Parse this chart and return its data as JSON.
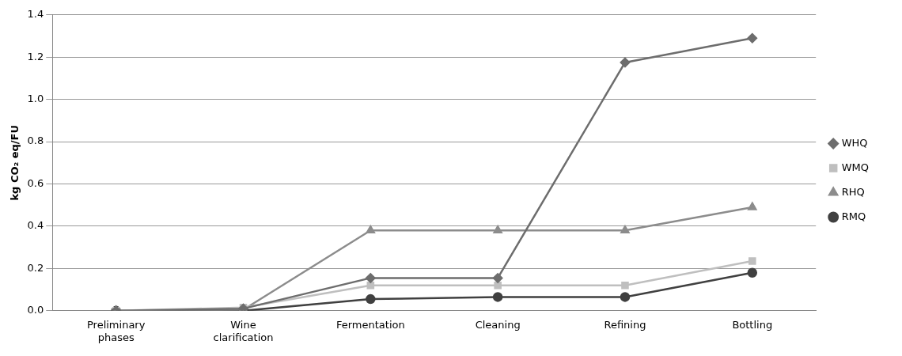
{
  "chart_data": {
    "type": "line",
    "ylabel": "kg CO₂ eq/FU",
    "categories": [
      "Preliminary phases",
      "Wine clarification",
      "Fermentation",
      "Cleaning",
      "Refining",
      "Bottling"
    ],
    "series": [
      {
        "name": "WHQ",
        "color": "#6d6d6d",
        "marker": "diamond",
        "values": [
          0,
          0.01,
          0.155,
          0.155,
          1.175,
          1.29
        ]
      },
      {
        "name": "WMQ",
        "color": "#bfbfbf",
        "marker": "square",
        "values": [
          0,
          0.015,
          0.12,
          0.12,
          0.12,
          0.235
        ]
      },
      {
        "name": "RHQ",
        "color": "#8c8c8c",
        "marker": "triangle",
        "values": [
          0,
          0.005,
          0.38,
          0.38,
          0.38,
          0.49
        ]
      },
      {
        "name": "RMQ",
        "color": "#404040",
        "marker": "circle",
        "values": [
          0,
          0,
          0.055,
          0.065,
          0.065,
          0.18
        ]
      }
    ],
    "ylim": [
      0,
      1.4
    ],
    "yticks": [
      {
        "value": 0,
        "label": "0.0"
      },
      {
        "value": 0.2,
        "label": "0.2"
      },
      {
        "value": 0.4,
        "label": "0.4"
      },
      {
        "value": 0.6,
        "label": "0.6"
      },
      {
        "value": 0.8,
        "label": "0.8"
      },
      {
        "value": 1,
        "label": "1.0"
      },
      {
        "value": 1.2,
        "label": "1.2"
      },
      {
        "value": 1.4,
        "label": "1.4"
      }
    ],
    "grid": "y",
    "legend": "right",
    "line_style": "solid"
  }
}
